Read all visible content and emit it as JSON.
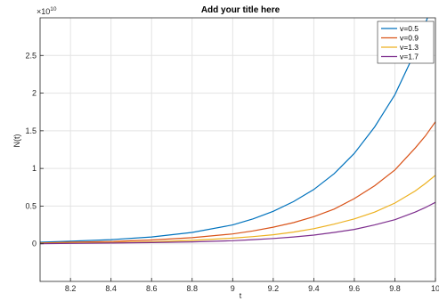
{
  "chart_data": {
    "type": "line",
    "title": "Add your title here",
    "xlabel": "t",
    "ylabel": "N(t)",
    "y_exponent_label": "×10",
    "y_exponent_value": "10",
    "xlim": [
      8.05,
      10.0
    ],
    "ylim": [
      -0.5,
      3.0
    ],
    "y_scale_factor": 10000000000.0,
    "grid": true,
    "legend_position": "top-right",
    "x_ticks": [
      "8.2",
      "8.4",
      "8.6",
      "8.8",
      "9",
      "9.2",
      "9.4",
      "9.6",
      "9.8",
      "10"
    ],
    "x_tick_values": [
      8.2,
      8.4,
      8.6,
      8.8,
      9.0,
      9.2,
      9.4,
      9.6,
      9.8,
      10.0
    ],
    "y_ticks": [
      "0",
      "0.5",
      "1",
      "1.5",
      "2",
      "2.5"
    ],
    "y_tick_values": [
      0,
      0.5,
      1,
      1.5,
      2,
      2.5
    ],
    "x": [
      8.05,
      8.2,
      8.4,
      8.6,
      8.8,
      9.0,
      9.1,
      9.2,
      9.3,
      9.4,
      9.5,
      9.6,
      9.7,
      9.8,
      9.9,
      9.95,
      10.0
    ],
    "series": [
      {
        "name": "v=0.5",
        "color": "#0072BD",
        "values": [
          0.02,
          0.035,
          0.055,
          0.09,
          0.15,
          0.25,
          0.33,
          0.43,
          0.56,
          0.72,
          0.93,
          1.2,
          1.55,
          1.98,
          2.55,
          2.92,
          3.3
        ]
      },
      {
        "name": "v=0.9",
        "color": "#D95319",
        "values": [
          0.01,
          0.02,
          0.03,
          0.05,
          0.08,
          0.13,
          0.17,
          0.22,
          0.28,
          0.36,
          0.46,
          0.6,
          0.77,
          0.98,
          1.27,
          1.43,
          1.62
        ]
      },
      {
        "name": "v=1.3",
        "color": "#EDB120",
        "values": [
          0.005,
          0.01,
          0.015,
          0.025,
          0.045,
          0.075,
          0.095,
          0.12,
          0.155,
          0.2,
          0.26,
          0.33,
          0.42,
          0.54,
          0.7,
          0.8,
          0.91
        ]
      },
      {
        "name": "v=1.7",
        "color": "#7E2F8E",
        "values": [
          0.0,
          0.005,
          0.01,
          0.015,
          0.025,
          0.04,
          0.055,
          0.07,
          0.09,
          0.115,
          0.15,
          0.19,
          0.25,
          0.32,
          0.42,
          0.48,
          0.55
        ]
      }
    ]
  }
}
